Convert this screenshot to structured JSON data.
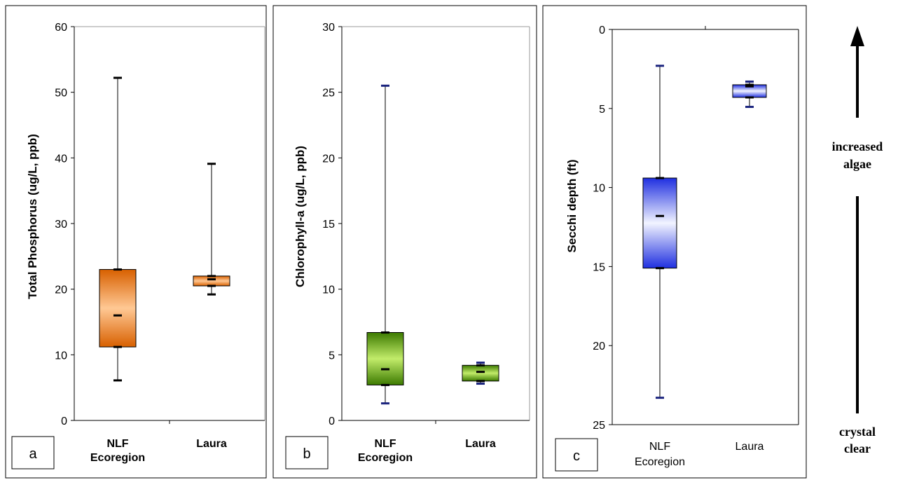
{
  "chart_data": [
    {
      "type": "box",
      "panel_label": "a",
      "ylabel": "Total Phosphorus (ug/L, ppb)",
      "ylim": [
        0,
        60
      ],
      "yticks": [
        0,
        10,
        20,
        30,
        40,
        50,
        60
      ],
      "y_inverted": false,
      "categories": [
        [
          "NLF",
          "Ecoregion"
        ],
        [
          "Laura"
        ]
      ],
      "category_bold": true,
      "boxes": [
        {
          "min": 6.1,
          "q1": 11.2,
          "median": 16.0,
          "q3": 23.0,
          "max": 52.2
        },
        {
          "min": 19.2,
          "q1": 20.5,
          "median": 21.5,
          "q3": 22.0,
          "max": 39.1
        }
      ],
      "colors": {
        "edge": "#d86000",
        "light": "#ffc894",
        "whisker_cap": "#000000"
      }
    },
    {
      "type": "box",
      "panel_label": "b",
      "ylabel": "Chlorophyll-a (ug/L, ppb)",
      "ylim": [
        0,
        30
      ],
      "yticks": [
        0,
        5,
        10,
        15,
        20,
        25,
        30
      ],
      "y_inverted": false,
      "categories": [
        [
          "NLF",
          "Ecoregion"
        ],
        [
          "Laura"
        ]
      ],
      "category_bold": true,
      "boxes": [
        {
          "min": 1.3,
          "q1": 2.7,
          "median": 3.9,
          "q3": 6.7,
          "max": 25.5
        },
        {
          "min": 2.8,
          "q1": 3.0,
          "median": 3.7,
          "q3": 4.2,
          "max": 4.4
        }
      ],
      "colors": {
        "edge": "#3c7a00",
        "light": "#c2ec6a",
        "whisker_cap": "#1a237e"
      }
    },
    {
      "type": "box",
      "panel_label": "c",
      "ylabel": "Secchi depth (ft)",
      "ylim": [
        0,
        25
      ],
      "yticks": [
        0,
        5,
        10,
        15,
        20,
        25
      ],
      "y_inverted": true,
      "categories": [
        [
          "NLF",
          "Ecoregion"
        ],
        [
          "Laura"
        ]
      ],
      "category_bold": false,
      "boxes": [
        {
          "min": 2.3,
          "q1": 9.4,
          "median": 11.8,
          "q3": 15.1,
          "max": 23.3
        },
        {
          "min": 3.3,
          "q1": 3.5,
          "median": 3.6,
          "q3": 4.3,
          "max": 4.9
        }
      ],
      "colors": {
        "edge": "#1f2fe0",
        "light": "#f2f4ff",
        "whisker_cap": "#1a237e"
      }
    }
  ],
  "side_annotation": {
    "top_label": [
      "increased",
      "algae"
    ],
    "bottom_label": [
      "crystal",
      "clear"
    ]
  }
}
